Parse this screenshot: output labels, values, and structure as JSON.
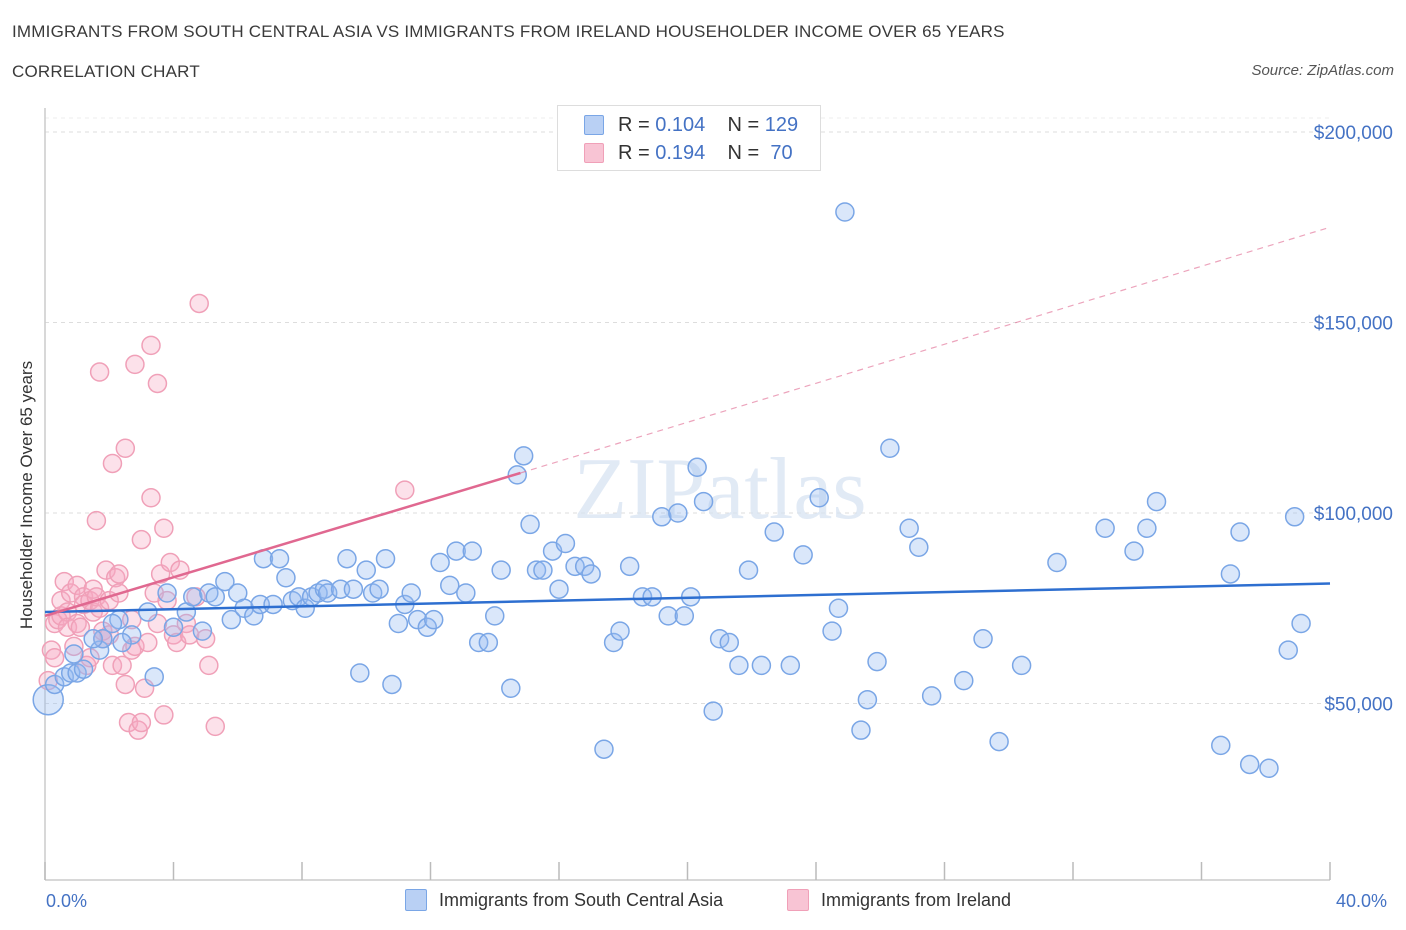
{
  "chart_data": {
    "type": "scatter",
    "title": "IMMIGRANTS FROM SOUTH CENTRAL ASIA VS IMMIGRANTS FROM IRELAND HOUSEHOLDER INCOME OVER 65 YEARS",
    "subtitle": "CORRELATION CHART",
    "source": "Source: ZipAtlas.com",
    "ylabel": "Householder Income Over 65 years",
    "xlim": [
      0,
      40
    ],
    "ylim": [
      0,
      200000
    ],
    "x_tick_labels": [
      "0.0%",
      "40.0%"
    ],
    "y_tick_labels": [
      "$200,000",
      "$150,000",
      "$100,000",
      "$50,000"
    ],
    "y_tick_values": [
      200000,
      150000,
      100000,
      50000
    ],
    "watermark": "ZIPatlas",
    "colors": {
      "blue": "#7aa6e6",
      "blue_line": "#2e6fd0",
      "pink": "#f0a0b8",
      "pink_line": "#e06890",
      "axis_text": "#4472c4"
    },
    "legend": [
      {
        "r_label": "R = ",
        "r": "0.104",
        "n_label": "N = ",
        "n": "129"
      },
      {
        "r_label": "R = ",
        "r": "0.194",
        "n_label": "N = ",
        "n": " 70"
      }
    ],
    "series": [
      {
        "name": "Immigrants from South Central Asia",
        "color": "#7aa6e6",
        "trend": {
          "x": [
            0,
            40
          ],
          "y": [
            74000,
            81500
          ],
          "dashed_to": null
        },
        "points": [
          [
            0.1,
            51000
          ],
          [
            0.3,
            55000
          ],
          [
            0.6,
            57000
          ],
          [
            0.8,
            58000
          ],
          [
            1.0,
            58000
          ],
          [
            1.2,
            59000
          ],
          [
            0.9,
            63000
          ],
          [
            1.7,
            64000
          ],
          [
            1.8,
            67000
          ],
          [
            2.3,
            72000
          ],
          [
            2.7,
            68000
          ],
          [
            1.5,
            67000
          ],
          [
            2.1,
            71000
          ],
          [
            2.4,
            66000
          ],
          [
            3.4,
            57000
          ],
          [
            3.2,
            74000
          ],
          [
            3.8,
            79000
          ],
          [
            4.0,
            70000
          ],
          [
            4.4,
            74000
          ],
          [
            4.6,
            78000
          ],
          [
            4.9,
            69000
          ],
          [
            5.1,
            79000
          ],
          [
            5.3,
            78000
          ],
          [
            5.6,
            82000
          ],
          [
            5.8,
            72000
          ],
          [
            6.0,
            79000
          ],
          [
            6.2,
            75000
          ],
          [
            6.5,
            73000
          ],
          [
            6.7,
            76000
          ],
          [
            6.8,
            88000
          ],
          [
            7.1,
            76000
          ],
          [
            7.3,
            88000
          ],
          [
            7.5,
            83000
          ],
          [
            7.7,
            77000
          ],
          [
            7.9,
            78000
          ],
          [
            8.1,
            75000
          ],
          [
            8.3,
            78000
          ],
          [
            8.5,
            79000
          ],
          [
            8.7,
            80000
          ],
          [
            8.8,
            79000
          ],
          [
            9.2,
            80000
          ],
          [
            9.4,
            88000
          ],
          [
            9.6,
            80000
          ],
          [
            9.8,
            58000
          ],
          [
            10.0,
            85000
          ],
          [
            10.2,
            79000
          ],
          [
            10.4,
            80000
          ],
          [
            10.6,
            88000
          ],
          [
            10.8,
            55000
          ],
          [
            11.0,
            71000
          ],
          [
            11.2,
            76000
          ],
          [
            11.4,
            79000
          ],
          [
            11.6,
            72000
          ],
          [
            11.9,
            70000
          ],
          [
            12.1,
            72000
          ],
          [
            12.3,
            87000
          ],
          [
            12.6,
            81000
          ],
          [
            12.8,
            90000
          ],
          [
            13.1,
            79000
          ],
          [
            13.3,
            90000
          ],
          [
            13.5,
            66000
          ],
          [
            13.8,
            66000
          ],
          [
            14.0,
            73000
          ],
          [
            14.2,
            85000
          ],
          [
            14.5,
            54000
          ],
          [
            14.7,
            110000
          ],
          [
            14.9,
            115000
          ],
          [
            15.1,
            97000
          ],
          [
            15.3,
            85000
          ],
          [
            15.5,
            85000
          ],
          [
            15.8,
            90000
          ],
          [
            16.0,
            80000
          ],
          [
            16.2,
            92000
          ],
          [
            16.5,
            86000
          ],
          [
            16.8,
            86000
          ],
          [
            17.0,
            84000
          ],
          [
            17.4,
            38000
          ],
          [
            17.7,
            66000
          ],
          [
            17.9,
            69000
          ],
          [
            18.2,
            86000
          ],
          [
            18.6,
            78000
          ],
          [
            18.9,
            78000
          ],
          [
            19.2,
            99000
          ],
          [
            19.4,
            73000
          ],
          [
            19.7,
            100000
          ],
          [
            19.9,
            73000
          ],
          [
            20.1,
            78000
          ],
          [
            20.3,
            112000
          ],
          [
            20.5,
            103000
          ],
          [
            20.8,
            48000
          ],
          [
            21.0,
            67000
          ],
          [
            21.3,
            66000
          ],
          [
            21.6,
            60000
          ],
          [
            21.9,
            85000
          ],
          [
            22.3,
            60000
          ],
          [
            22.7,
            95000
          ],
          [
            23.2,
            60000
          ],
          [
            23.6,
            89000
          ],
          [
            24.1,
            104000
          ],
          [
            24.5,
            69000
          ],
          [
            24.7,
            75000
          ],
          [
            24.9,
            179000
          ],
          [
            25.4,
            43000
          ],
          [
            25.6,
            51000
          ],
          [
            25.9,
            61000
          ],
          [
            26.3,
            117000
          ],
          [
            26.9,
            96000
          ],
          [
            27.2,
            91000
          ],
          [
            27.6,
            52000
          ],
          [
            28.6,
            56000
          ],
          [
            29.2,
            67000
          ],
          [
            29.7,
            40000
          ],
          [
            30.4,
            60000
          ],
          [
            31.5,
            87000
          ],
          [
            33.0,
            96000
          ],
          [
            33.9,
            90000
          ],
          [
            34.3,
            96000
          ],
          [
            34.6,
            103000
          ],
          [
            36.6,
            39000
          ],
          [
            36.9,
            84000
          ],
          [
            37.2,
            95000
          ],
          [
            37.5,
            34000
          ],
          [
            38.1,
            33000
          ],
          [
            38.7,
            64000
          ],
          [
            38.9,
            99000
          ],
          [
            39.1,
            71000
          ]
        ]
      },
      {
        "name": "Immigrants from Ireland",
        "color": "#f0a0b8",
        "trend": {
          "x": [
            0,
            14.8
          ],
          "y": [
            73000,
            110500
          ],
          "dashed_to": [
            40,
            175000
          ]
        },
        "points": [
          [
            0.1,
            56000
          ],
          [
            0.2,
            64000
          ],
          [
            0.3,
            62000
          ],
          [
            0.3,
            71000
          ],
          [
            0.4,
            72000
          ],
          [
            0.5,
            73000
          ],
          [
            0.5,
            77000
          ],
          [
            0.6,
            82000
          ],
          [
            0.7,
            74000
          ],
          [
            0.7,
            70000
          ],
          [
            0.8,
            79000
          ],
          [
            0.9,
            65000
          ],
          [
            1.0,
            71000
          ],
          [
            1.0,
            81000
          ],
          [
            1.1,
            70000
          ],
          [
            1.2,
            78000
          ],
          [
            1.2,
            76000
          ],
          [
            1.3,
            60000
          ],
          [
            1.4,
            77000
          ],
          [
            1.4,
            62000
          ],
          [
            1.5,
            80000
          ],
          [
            1.5,
            74000
          ],
          [
            1.6,
            78000
          ],
          [
            1.6,
            98000
          ],
          [
            1.7,
            137000
          ],
          [
            1.7,
            75000
          ],
          [
            1.8,
            67000
          ],
          [
            1.8,
            69000
          ],
          [
            1.9,
            85000
          ],
          [
            2.0,
            77000
          ],
          [
            2.0,
            68000
          ],
          [
            2.1,
            60000
          ],
          [
            2.1,
            113000
          ],
          [
            2.2,
            83000
          ],
          [
            2.3,
            79000
          ],
          [
            2.3,
            84000
          ],
          [
            2.4,
            60000
          ],
          [
            2.5,
            117000
          ],
          [
            2.5,
            55000
          ],
          [
            2.6,
            45000
          ],
          [
            2.7,
            72000
          ],
          [
            2.7,
            64000
          ],
          [
            2.8,
            65000
          ],
          [
            2.8,
            139000
          ],
          [
            2.9,
            43000
          ],
          [
            3.0,
            45000
          ],
          [
            3.0,
            93000
          ],
          [
            3.1,
            54000
          ],
          [
            3.2,
            66000
          ],
          [
            3.3,
            104000
          ],
          [
            3.3,
            144000
          ],
          [
            3.4,
            79000
          ],
          [
            3.5,
            71000
          ],
          [
            3.5,
            134000
          ],
          [
            3.6,
            84000
          ],
          [
            3.7,
            47000
          ],
          [
            3.7,
            96000
          ],
          [
            3.8,
            77000
          ],
          [
            3.9,
            87000
          ],
          [
            4.0,
            68000
          ],
          [
            4.1,
            66000
          ],
          [
            4.2,
            85000
          ],
          [
            4.4,
            71000
          ],
          [
            4.5,
            68000
          ],
          [
            4.7,
            78000
          ],
          [
            4.8,
            155000
          ],
          [
            5.0,
            67000
          ],
          [
            5.1,
            60000
          ],
          [
            5.3,
            44000
          ],
          [
            11.2,
            106000
          ]
        ]
      }
    ]
  }
}
